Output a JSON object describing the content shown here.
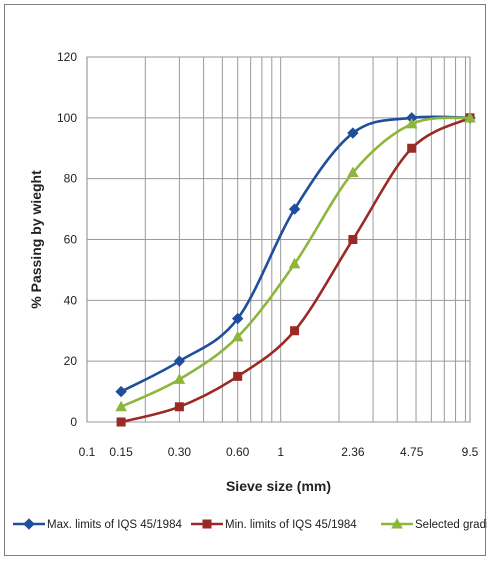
{
  "chart_data": {
    "type": "line",
    "xscale": "log",
    "xlim": [
      0.1,
      9.5
    ],
    "ylim": [
      0,
      120
    ],
    "grid": true,
    "legend_position": "bottom",
    "xlabel": "Sieve size (mm)",
    "ylabel": "% Passing by wieght",
    "x_tick_labels": [
      {
        "label": "0.1",
        "value": 0.1
      },
      {
        "label": "0.15",
        "value": 0.15
      },
      {
        "label": "0.30",
        "value": 0.3
      },
      {
        "label": "0.60",
        "value": 0.6
      },
      {
        "label": "1",
        "value": 1
      },
      {
        "label": "2.36",
        "value": 2.36
      },
      {
        "label": "4.75",
        "value": 4.75
      },
      {
        "label": "9.5",
        "value": 9.5
      }
    ],
    "y_ticks": [
      0,
      20,
      40,
      60,
      80,
      100,
      120
    ],
    "series": [
      {
        "name": "Max. limits of IQS 45/1984",
        "color": "#1f4e9c",
        "marker": "diamond",
        "points": [
          [
            0.15,
            10
          ],
          [
            0.3,
            20
          ],
          [
            0.6,
            34
          ],
          [
            1.18,
            70
          ],
          [
            2.36,
            95
          ],
          [
            4.75,
            100
          ],
          [
            9.5,
            100
          ]
        ]
      },
      {
        "name": "Min. limits of IQS 45/1984",
        "color": "#9b2a26",
        "marker": "square",
        "points": [
          [
            0.15,
            0
          ],
          [
            0.3,
            5
          ],
          [
            0.6,
            15
          ],
          [
            1.18,
            30
          ],
          [
            2.36,
            60
          ],
          [
            4.75,
            90
          ],
          [
            9.5,
            100
          ]
        ]
      },
      {
        "name": "Selected grading",
        "color": "#8cb63c",
        "marker": "triangle",
        "points": [
          [
            0.15,
            5
          ],
          [
            0.3,
            14
          ],
          [
            0.6,
            28
          ],
          [
            1.18,
            52
          ],
          [
            2.36,
            82
          ],
          [
            4.75,
            98
          ],
          [
            9.5,
            100
          ]
        ]
      }
    ]
  }
}
